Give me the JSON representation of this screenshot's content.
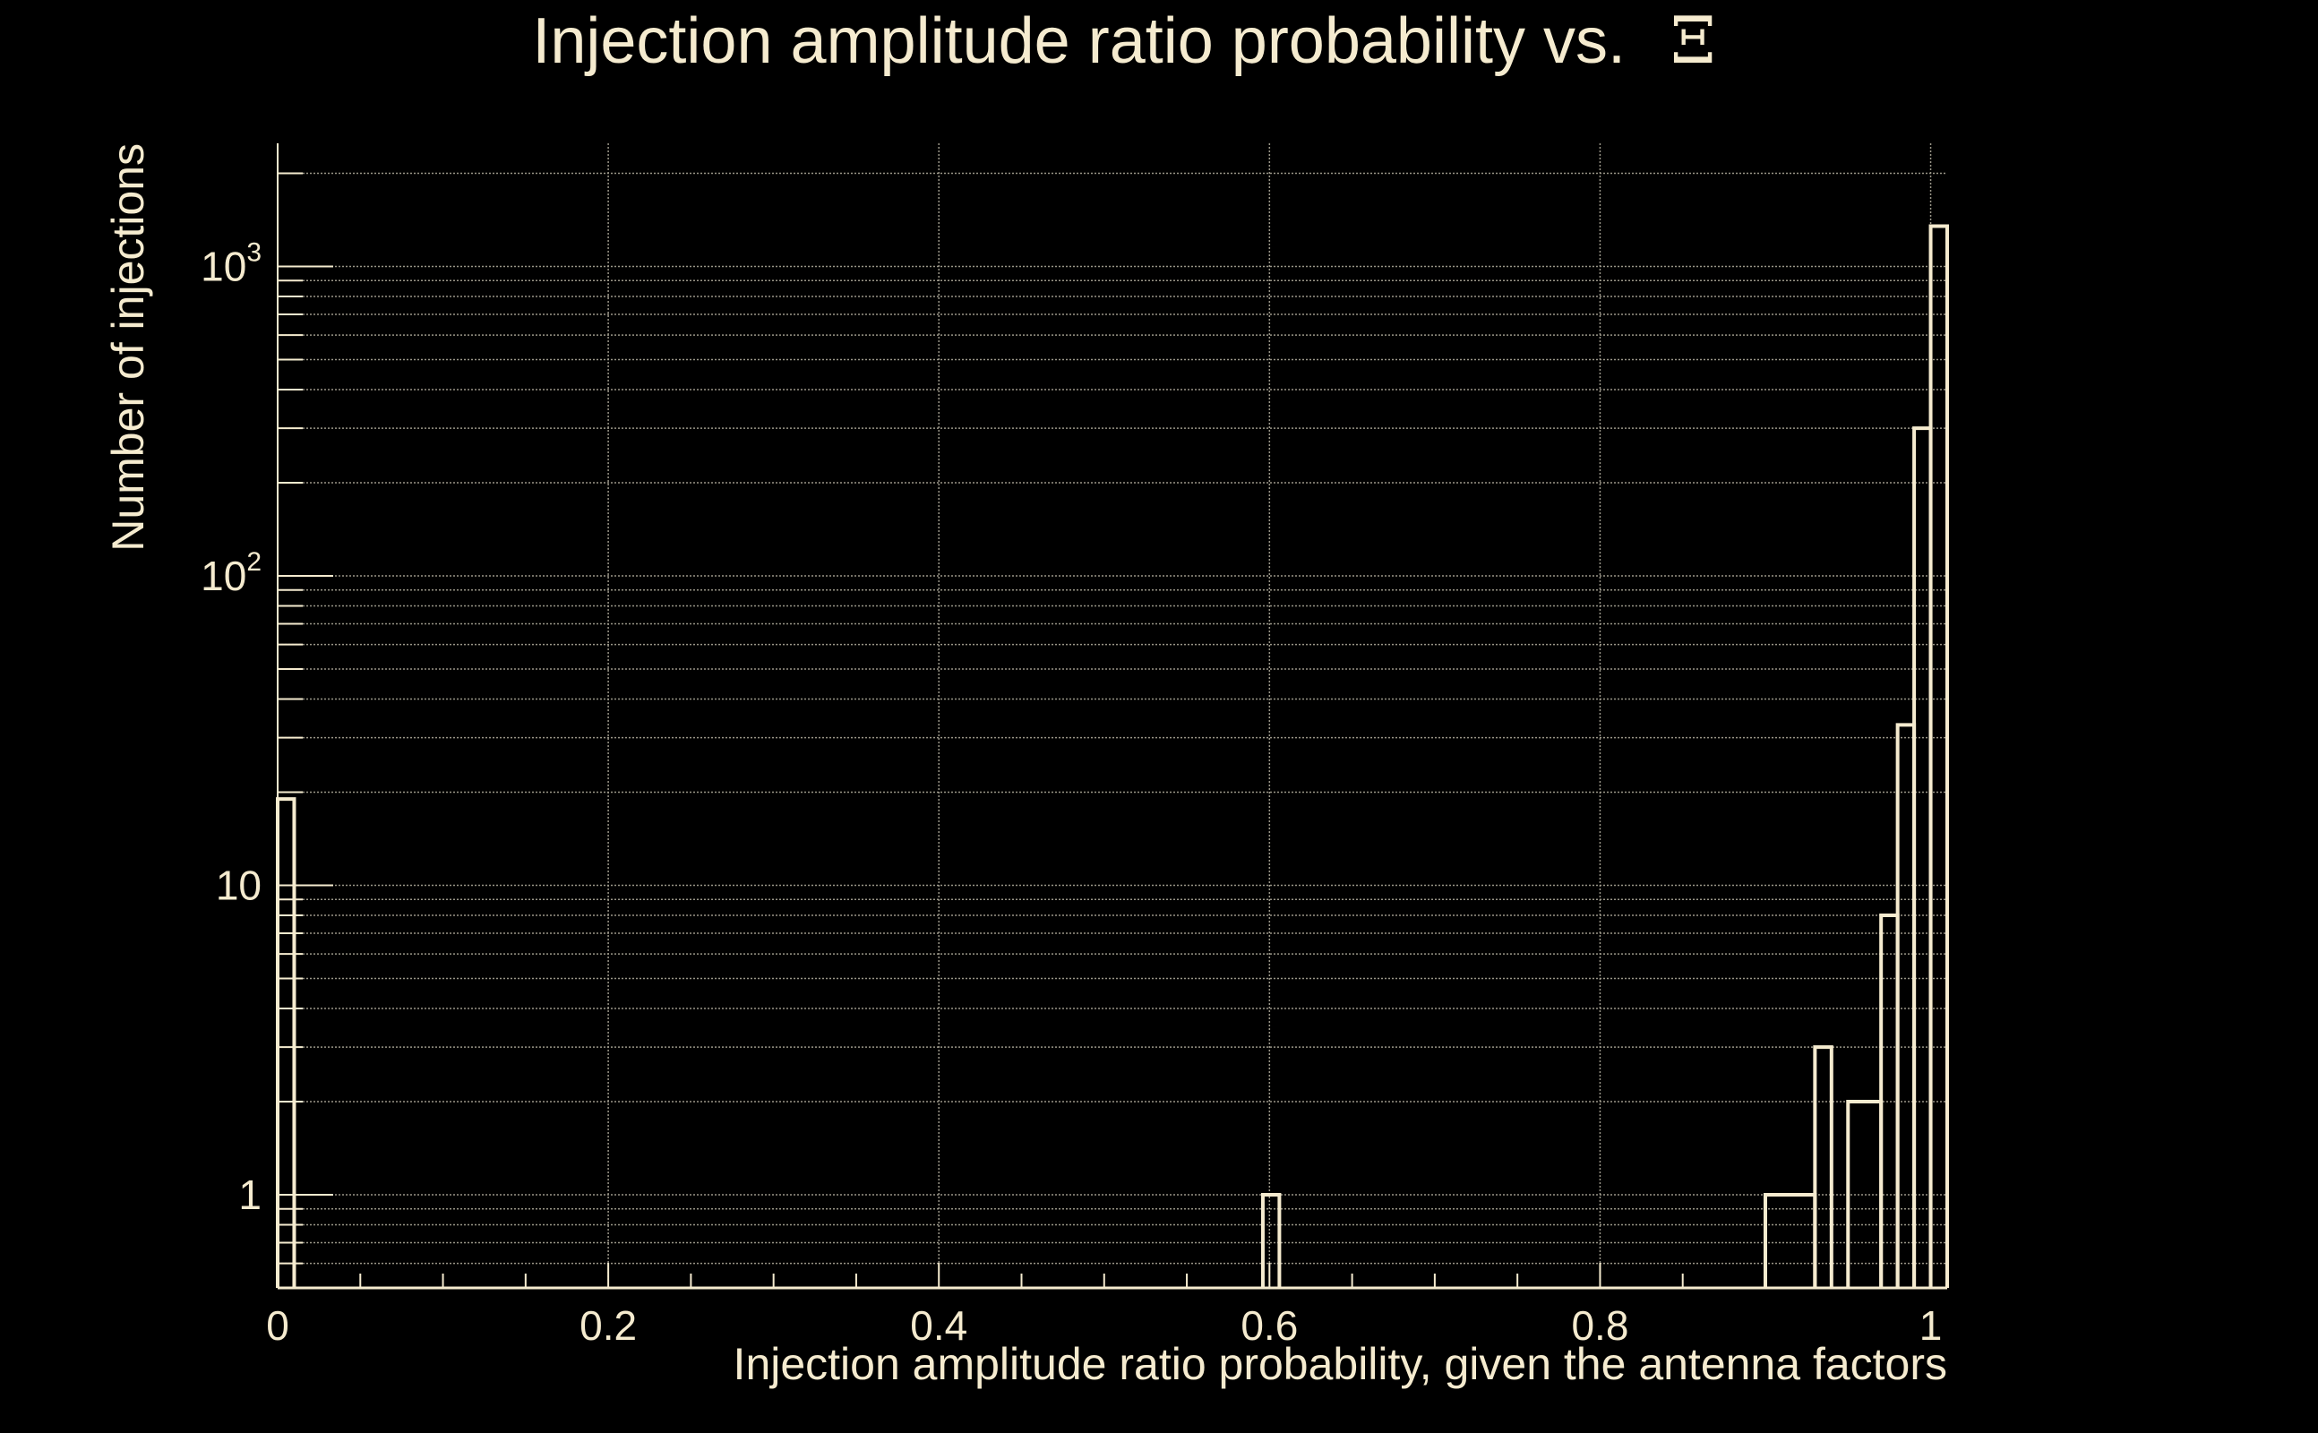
{
  "chart_data": {
    "type": "bar",
    "title": "Injection amplitude ratio probability vs.",
    "title_symbol": "Ξ",
    "xlabel": "Injection amplitude ratio probability, given the antenna factors",
    "ylabel": "Number of injections",
    "xlim": [
      0,
      1
    ],
    "ylim": [
      0.5,
      2500
    ],
    "yscale": "log",
    "grid": true,
    "bin_width": 0.01,
    "x_ticks": [
      {
        "value": 0,
        "label": "0"
      },
      {
        "value": 0.2,
        "label": "0.2"
      },
      {
        "value": 0.4,
        "label": "0.4"
      },
      {
        "value": 0.6,
        "label": "0.6"
      },
      {
        "value": 0.8,
        "label": "0.8"
      },
      {
        "value": 1,
        "label": "1"
      }
    ],
    "y_ticks": [
      {
        "value": 1,
        "base": "1",
        "exp": ""
      },
      {
        "value": 10,
        "base": "10",
        "exp": ""
      },
      {
        "value": 100,
        "base": "10",
        "exp": "2"
      },
      {
        "value": 1000,
        "base": "10",
        "exp": "3"
      }
    ],
    "bins": [
      {
        "x0": 0.0,
        "x1": 0.01,
        "count": 19
      },
      {
        "x0": 0.596,
        "x1": 0.606,
        "count": 1
      },
      {
        "x0": 0.9,
        "x1": 0.93,
        "count": 1
      },
      {
        "x0": 0.93,
        "x1": 0.94,
        "count": 3
      },
      {
        "x0": 0.95,
        "x1": 0.97,
        "count": 2
      },
      {
        "x0": 0.97,
        "x1": 0.98,
        "count": 8
      },
      {
        "x0": 0.98,
        "x1": 0.99,
        "count": 33
      },
      {
        "x0": 0.99,
        "x1": 1.0,
        "count": 300
      },
      {
        "x0": 1.0,
        "x1": 1.01,
        "count": 1350
      }
    ],
    "colors": {
      "background": "#000000",
      "foreground": "#f5ebcf",
      "grid": "#9a9688"
    }
  }
}
